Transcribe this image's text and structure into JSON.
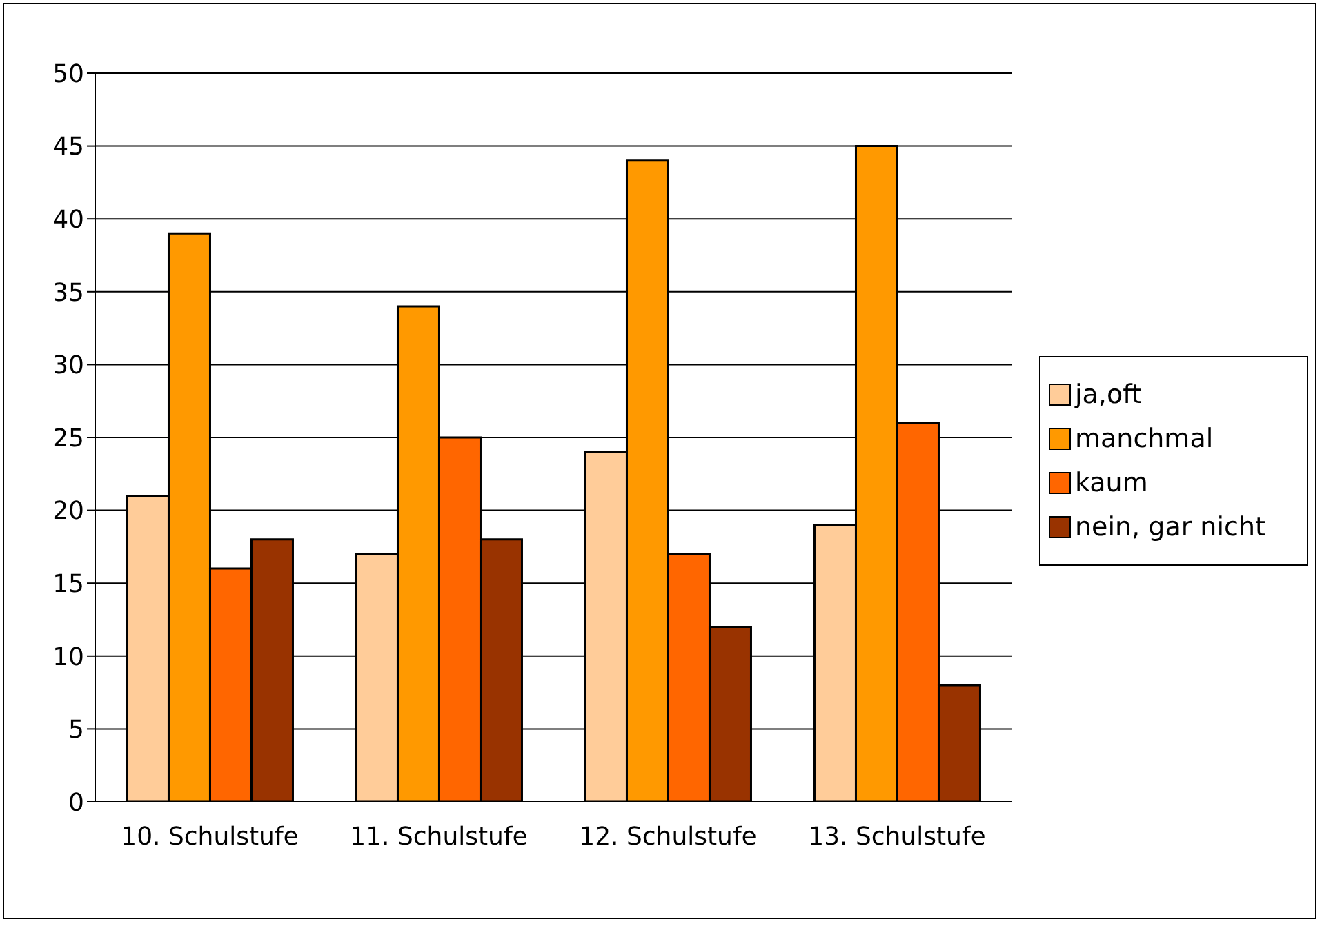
{
  "chart_data": {
    "type": "bar",
    "categories": [
      "10. Schulstufe",
      "11. Schulstufe",
      "12. Schulstufe",
      "13. Schulstufe"
    ],
    "series": [
      {
        "name": "ja,oft",
        "color": "#ffcc99",
        "values": [
          21,
          17,
          24,
          19
        ]
      },
      {
        "name": "manchmal",
        "color": "#ff9900",
        "values": [
          39,
          34,
          44,
          45
        ]
      },
      {
        "name": "kaum",
        "color": "#ff6600",
        "values": [
          16,
          25,
          17,
          26
        ]
      },
      {
        "name": "nein, gar nicht",
        "color": "#993300",
        "values": [
          18,
          18,
          12,
          8
        ]
      }
    ],
    "ylim": [
      0,
      50
    ],
    "yticks": [
      0,
      5,
      10,
      15,
      20,
      25,
      30,
      35,
      40,
      45,
      50
    ],
    "grid": "y",
    "legend": "right"
  }
}
